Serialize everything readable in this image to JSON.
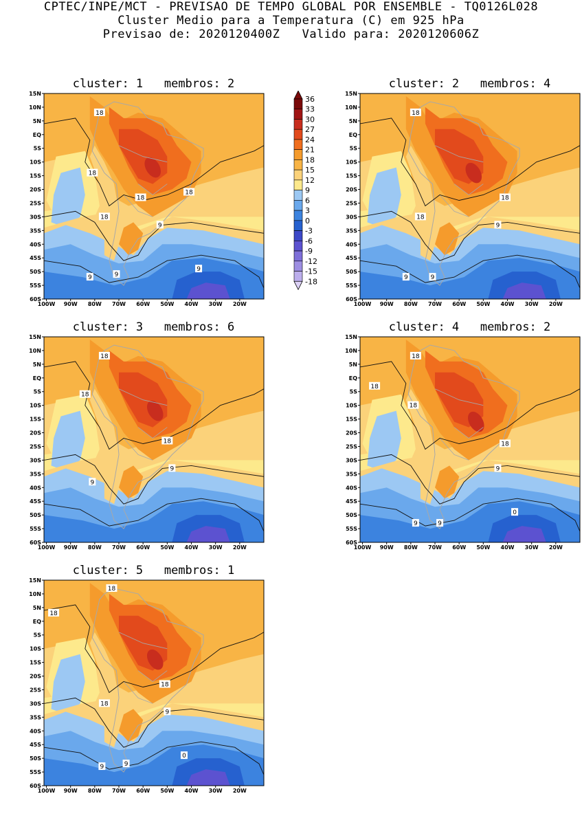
{
  "header": {
    "line1": "CPTEC/INPE/MCT - PREVISAO DE TEMPO GLOBAL POR ENSEMBLE - TQ0126L028",
    "line2": "Cluster Medio para a Temperatura (C) em 925 hPa",
    "line3": "Previsao de: 2020120400Z   Valido para: 2020120606Z"
  },
  "axes": {
    "lat_labels": [
      "15N",
      "10N",
      "5N",
      "EQ",
      "5S",
      "10S",
      "15S",
      "20S",
      "25S",
      "30S",
      "35S",
      "40S",
      "45S",
      "50S",
      "55S",
      "60S"
    ],
    "lon_labels": [
      "100W",
      "90W",
      "80W",
      "70W",
      "60W",
      "50W",
      "40W",
      "30W",
      "20W"
    ],
    "lat_range": [
      -60,
      15
    ],
    "lon_range": [
      -101,
      -10
    ]
  },
  "colorbar": {
    "labels": [
      "36",
      "33",
      "30",
      "27",
      "24",
      "21",
      "18",
      "15",
      "12",
      "9",
      "6",
      "3",
      "0",
      "-3",
      "-6",
      "-9",
      "-12",
      "-15",
      "-18"
    ],
    "colors": [
      "#7a0a0a",
      "#a01414",
      "#c82d1e",
      "#e24a1c",
      "#f06e1e",
      "#f59b2c",
      "#f8b445",
      "#fbd27a",
      "#fde98c",
      "#9cc8f3",
      "#6aa8ec",
      "#3c83df",
      "#2661cf",
      "#3c48c8",
      "#5c52d0",
      "#7e6fd9",
      "#9d8ee2",
      "#bcaeec",
      "#ddd2f6"
    ]
  },
  "panels": [
    {
      "title": "cluster: 1   membros: 2",
      "contour_labels": [
        {
          "text": "18",
          "lon": -78,
          "lat": 8
        },
        {
          "text": "18",
          "lon": -81,
          "lat": -14
        },
        {
          "text": "18",
          "lon": -76,
          "lat": -30
        },
        {
          "text": "18",
          "lon": -61,
          "lat": -23
        },
        {
          "text": "18",
          "lon": -41,
          "lat": -21
        },
        {
          "text": "9",
          "lon": -53,
          "lat": -33
        },
        {
          "text": "9",
          "lon": -82,
          "lat": -52
        },
        {
          "text": "9",
          "lon": -71,
          "lat": -51
        },
        {
          "text": "9",
          "lon": -37,
          "lat": -49
        }
      ]
    },
    {
      "title": "cluster: 2   membros: 4",
      "contour_labels": [
        {
          "text": "18",
          "lon": -78,
          "lat": 8
        },
        {
          "text": "18",
          "lon": -76,
          "lat": -30
        },
        {
          "text": "18",
          "lon": -41,
          "lat": -23
        },
        {
          "text": "9",
          "lon": -44,
          "lat": -33
        },
        {
          "text": "9",
          "lon": -82,
          "lat": -52
        },
        {
          "text": "9",
          "lon": -71,
          "lat": -52
        }
      ]
    },
    {
      "title": "cluster: 3   membros: 6",
      "contour_labels": [
        {
          "text": "18",
          "lon": -76,
          "lat": 8
        },
        {
          "text": "18",
          "lon": -84,
          "lat": -6
        },
        {
          "text": "18",
          "lon": -50,
          "lat": -23
        },
        {
          "text": "9",
          "lon": -48,
          "lat": -33
        },
        {
          "text": "9",
          "lon": -81,
          "lat": -38
        }
      ]
    },
    {
      "title": "cluster: 4   membros: 2",
      "contour_labels": [
        {
          "text": "18",
          "lon": -78,
          "lat": 8
        },
        {
          "text": "18",
          "lon": -95,
          "lat": -3
        },
        {
          "text": "18",
          "lon": -79,
          "lat": -10
        },
        {
          "text": "18",
          "lon": -41,
          "lat": -24
        },
        {
          "text": "9",
          "lon": -44,
          "lat": -33
        },
        {
          "text": "9",
          "lon": -78,
          "lat": -53
        },
        {
          "text": "9",
          "lon": -68,
          "lat": -53
        },
        {
          "text": "0",
          "lon": -37,
          "lat": -49
        }
      ]
    },
    {
      "title": "cluster: 5   membros: 1",
      "contour_labels": [
        {
          "text": "18",
          "lon": -73,
          "lat": 12
        },
        {
          "text": "18",
          "lon": -97,
          "lat": 3
        },
        {
          "text": "18",
          "lon": -51,
          "lat": -23
        },
        {
          "text": "18",
          "lon": -76,
          "lat": -30
        },
        {
          "text": "9",
          "lon": -50,
          "lat": -33
        },
        {
          "text": "9",
          "lon": -77,
          "lat": -53
        },
        {
          "text": "9",
          "lon": -67,
          "lat": -52
        },
        {
          "text": "0",
          "lon": -43,
          "lat": -49
        }
      ]
    }
  ]
}
